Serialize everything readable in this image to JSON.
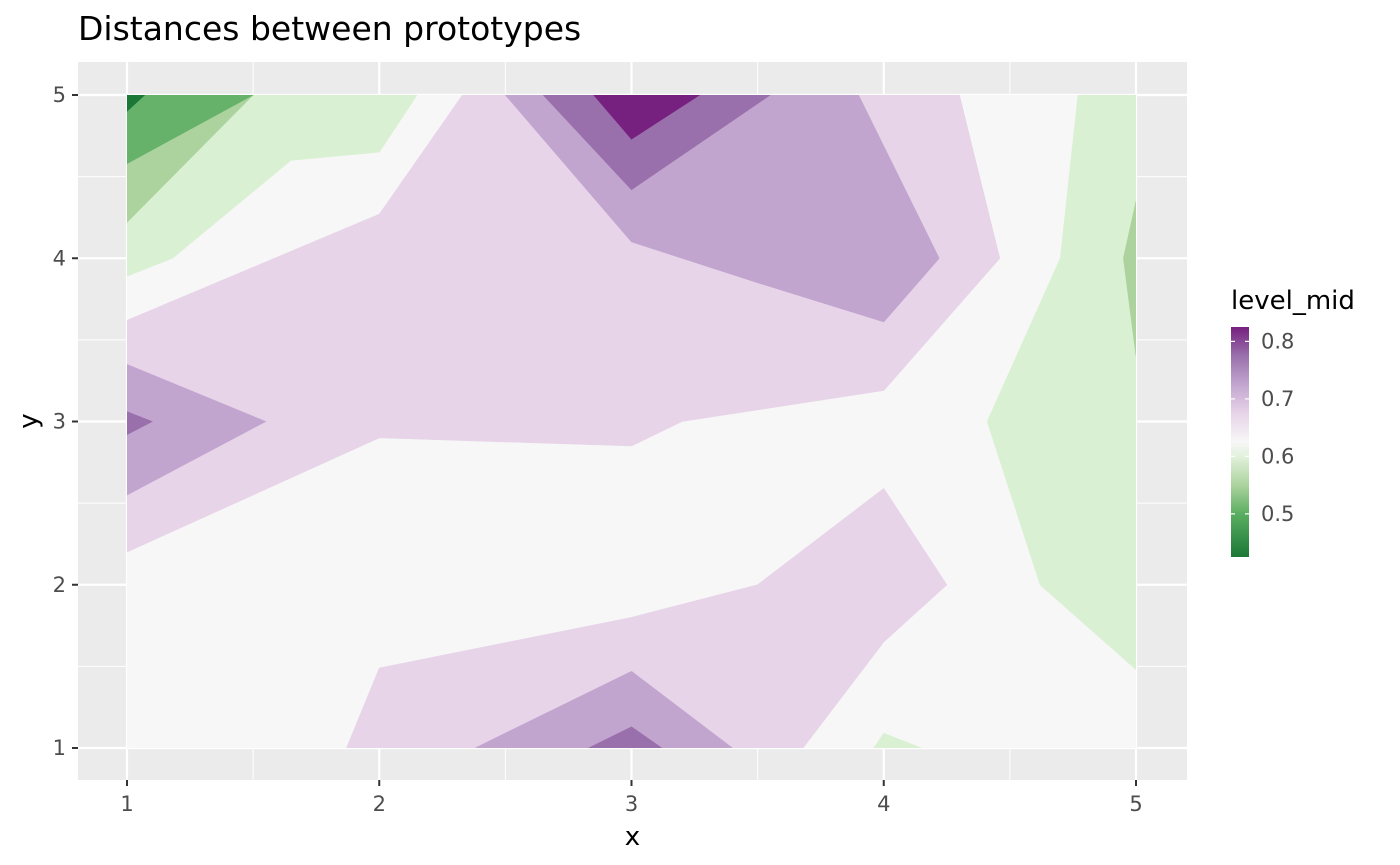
{
  "chart_data": {
    "type": "contour",
    "title": "Distances between prototypes",
    "xlabel": "x",
    "ylabel": "y",
    "xlim": [
      0.8,
      5.2
    ],
    "ylim": [
      0.8,
      5.2
    ],
    "data_range": [
      1,
      5
    ],
    "x_ticks": [
      1,
      2,
      3,
      4,
      5
    ],
    "x_tick_labels": [
      "1",
      "2",
      "3",
      "4",
      "5"
    ],
    "y_ticks": [
      1,
      2,
      3,
      4,
      5
    ],
    "y_tick_labels": [
      "1",
      "2",
      "3",
      "4",
      "5"
    ],
    "grid": true,
    "legend": {
      "title": "level_mid",
      "placement": "right",
      "range": [
        0.425,
        0.825
      ],
      "ticks": [
        0.5,
        0.6,
        0.7,
        0.8
      ],
      "tick_labels": [
        "0.5",
        "0.6",
        "0.7",
        "0.8"
      ]
    },
    "level_colors": {
      "0.450": "#1b7837",
      "0.475": "#1b7837",
      "0.500": "#5aae61",
      "0.525": "#66b26a",
      "0.550": "#acd39e",
      "0.575": "#d9f0d3",
      "0.625": "#f7f7f7",
      "0.675": "#e7d4e8",
      "0.725": "#c2a5cf",
      "0.775": "#9970ab",
      "0.800": "#76207f"
    },
    "bands": [
      {
        "level": "0.625",
        "points": [
          [
            1,
            1
          ],
          [
            5,
            1
          ],
          [
            5,
            5
          ],
          [
            1,
            5
          ]
        ]
      },
      {
        "level": "0.575",
        "points": [
          [
            1,
            3.89
          ],
          [
            1.18,
            4
          ],
          [
            1.65,
            4.6
          ],
          [
            2,
            4.65
          ],
          [
            2.15,
            5
          ],
          [
            1,
            5
          ]
        ]
      },
      {
        "level": "0.550",
        "points": [
          [
            1,
            4.22
          ],
          [
            1.5,
            5
          ],
          [
            1,
            5
          ]
        ],
        "alt": [
          [
            1,
            4.22
          ],
          [
            2,
            4.65
          ],
          [
            2,
            5
          ],
          [
            1,
            5
          ]
        ]
      },
      {
        "level": "0.525",
        "points": [
          [
            1,
            4.58
          ],
          [
            1.5,
            5
          ],
          [
            1,
            5
          ]
        ]
      },
      {
        "level": "0.475",
        "points": [
          [
            1,
            4.9
          ],
          [
            1.07,
            5
          ],
          [
            1,
            5
          ]
        ]
      },
      {
        "level": "0.675",
        "points": [
          [
            1,
            3.62
          ],
          [
            2,
            4.27
          ],
          [
            2.33,
            5
          ],
          [
            4.3,
            5
          ],
          [
            4.46,
            4
          ],
          [
            4,
            3.19
          ],
          [
            3.2,
            3
          ],
          [
            3,
            2.85
          ],
          [
            2,
            2.9
          ],
          [
            1,
            2.2
          ]
        ]
      },
      {
        "level": "0.725",
        "points": [
          [
            2.5,
            5
          ],
          [
            3.9,
            5
          ],
          [
            4.22,
            4
          ],
          [
            4,
            3.61
          ],
          [
            3.5,
            3.85
          ],
          [
            3,
            4.1
          ]
        ]
      },
      {
        "level": "0.775",
        "points": [
          [
            2.65,
            5
          ],
          [
            3.55,
            5
          ],
          [
            3,
            4.42
          ]
        ]
      },
      {
        "level": "0.800",
        "points": [
          [
            2.85,
            5
          ],
          [
            3.27,
            5
          ],
          [
            3,
            4.73
          ]
        ]
      },
      {
        "level": "0.725",
        "points": [
          [
            1,
            3.35
          ],
          [
            1.55,
            3
          ],
          [
            1,
            2.55
          ]
        ]
      },
      {
        "level": "0.775",
        "points": [
          [
            1,
            3.06
          ],
          [
            1.1,
            3
          ],
          [
            1,
            2.92
          ]
        ]
      },
      {
        "level": "0.675",
        "points": [
          [
            1.87,
            1
          ],
          [
            2,
            1.49
          ],
          [
            3,
            1.8
          ],
          [
            3.5,
            2
          ],
          [
            4,
            2.59
          ],
          [
            4.25,
            2
          ],
          [
            4,
            1.65
          ],
          [
            3.68,
            1
          ]
        ]
      },
      {
        "level": "0.725",
        "points": [
          [
            2.38,
            1
          ],
          [
            3,
            1.47
          ],
          [
            3.4,
            1
          ]
        ]
      },
      {
        "level": "0.775",
        "points": [
          [
            2.83,
            1
          ],
          [
            3,
            1.13
          ],
          [
            3.12,
            1
          ]
        ]
      },
      {
        "level": "0.575",
        "points": [
          [
            4.77,
            5
          ],
          [
            5,
            5
          ],
          [
            5,
            1.48
          ],
          [
            4.62,
            2
          ],
          [
            4.41,
            3
          ],
          [
            4.7,
            4
          ]
        ]
      },
      {
        "level": "0.550",
        "points": [
          [
            5,
            4.35
          ],
          [
            4.95,
            4
          ],
          [
            5,
            3.4
          ]
        ]
      },
      {
        "level": "0.575",
        "points": [
          [
            3.96,
            1
          ],
          [
            4,
            1.09
          ],
          [
            4.15,
            1
          ]
        ]
      }
    ]
  }
}
